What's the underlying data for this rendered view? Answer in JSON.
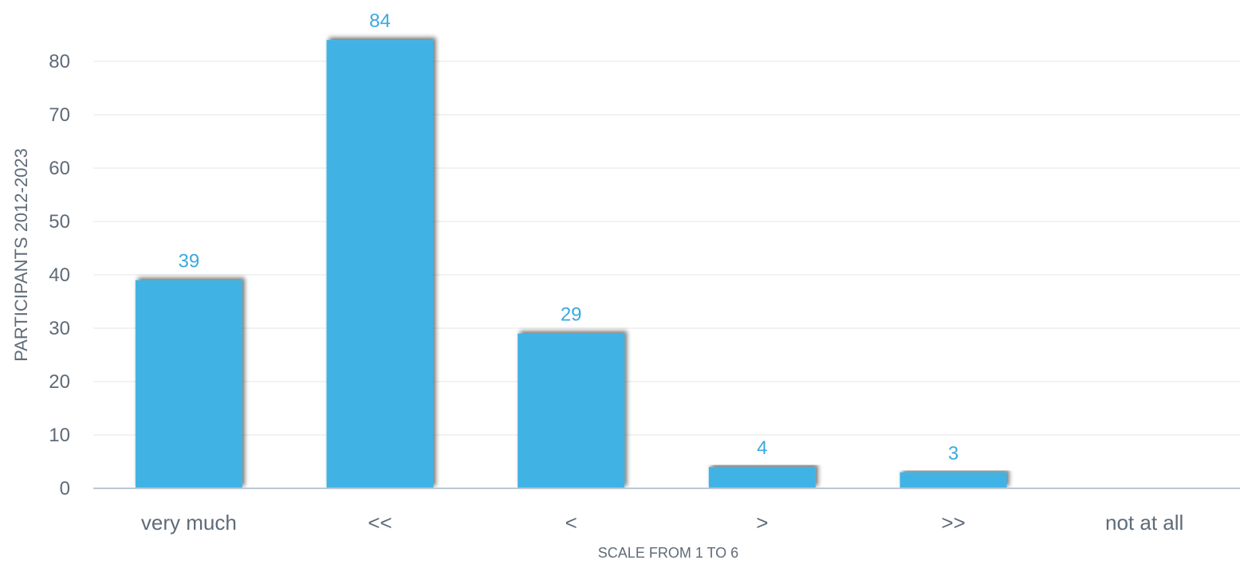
{
  "chart_data": {
    "type": "bar",
    "categories": [
      "very much",
      "<<",
      "<",
      ">",
      ">>",
      "not at all"
    ],
    "values": [
      39,
      84,
      29,
      4,
      3,
      0
    ],
    "data_labels": [
      "39",
      "84",
      "29",
      "4",
      "3",
      ""
    ],
    "xlabel": "SCALE FROM 1 TO 6",
    "ylabel": "PARTICIPANTS 2012-2023",
    "ylim": [
      0,
      80
    ],
    "yticks": [
      0,
      10,
      20,
      30,
      40,
      50,
      60,
      70,
      80
    ],
    "grid": true,
    "colors": {
      "bar": "#41b3e4",
      "label": "#3aa9df",
      "grid": "#e6e6e6",
      "axis": "#b9c8d6",
      "text": "#5f6b78"
    }
  }
}
